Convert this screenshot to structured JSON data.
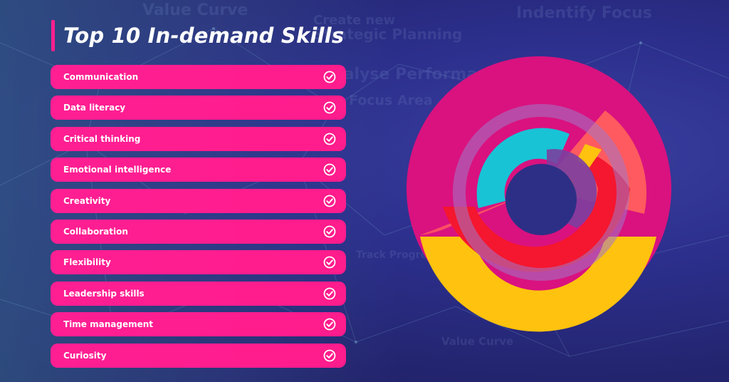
{
  "title": "Top 10 In-demand Skills",
  "skills": [
    {
      "label": "Communication"
    },
    {
      "label": "Data literacy"
    },
    {
      "label": "Critical thinking"
    },
    {
      "label": "Emotional intelligence"
    },
    {
      "label": "Creativity"
    },
    {
      "label": "Collaboration"
    },
    {
      "label": "Flexibility"
    },
    {
      "label": "Leadership skills"
    },
    {
      "label": "Time management"
    },
    {
      "label": "Curiosity"
    }
  ],
  "check_icon": "check-circle-icon",
  "background_words": [
    "Value Curve",
    "Create new",
    "Indentify Focus",
    "Strategic Planning",
    "Focus Area",
    "Analyse Performance",
    "Track Progress",
    "Value Curve"
  ],
  "colors": {
    "accent": "#ff1f8e",
    "background": "#2c2f8c",
    "ring_magenta": "#d9127f",
    "ring_coral": "#ff5a5f",
    "ring_red": "#f5162f",
    "ring_yellow": "#ffc20e",
    "ring_cyan": "#18c3d6",
    "ring_purple": "#7b3fa0"
  }
}
